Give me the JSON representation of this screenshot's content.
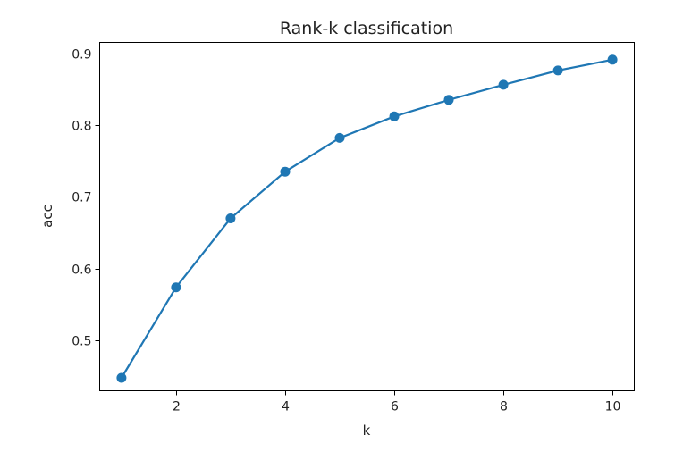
{
  "colors": {
    "series": "#1f77b4",
    "axes": "#000000",
    "text": "#222222",
    "background": "#ffffff"
  },
  "chart_data": {
    "type": "line",
    "title": "Rank-k classification",
    "xlabel": "k",
    "ylabel": "acc",
    "xlim": [
      0.6,
      10.4
    ],
    "ylim": [
      0.43,
      0.915
    ],
    "xticks": [
      2,
      4,
      6,
      8,
      10
    ],
    "yticks": [
      0.5,
      0.6,
      0.7,
      0.8,
      0.9
    ],
    "xtick_labels": [
      "2",
      "4",
      "6",
      "8",
      "10"
    ],
    "ytick_labels": [
      "0.5",
      "0.6",
      "0.7",
      "0.8",
      "0.9"
    ],
    "grid": false,
    "legend": false,
    "marker": "circle",
    "x": [
      1,
      2,
      3,
      4,
      5,
      6,
      7,
      8,
      9,
      10
    ],
    "y": [
      0.448,
      0.574,
      0.67,
      0.735,
      0.782,
      0.812,
      0.835,
      0.856,
      0.876,
      0.891
    ]
  }
}
